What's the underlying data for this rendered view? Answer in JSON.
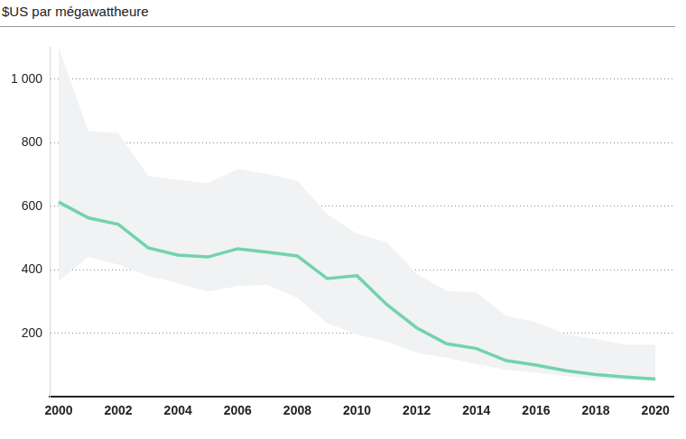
{
  "chart_data": {
    "type": "line",
    "ylabel": "$US par mégawattheure",
    "x": [
      2000,
      2001,
      2002,
      2003,
      2004,
      2005,
      2006,
      2007,
      2008,
      2009,
      2010,
      2011,
      2012,
      2013,
      2014,
      2015,
      2016,
      2017,
      2018,
      2019,
      2020
    ],
    "values": [
      613,
      563,
      543,
      469,
      446,
      440,
      466,
      455,
      443,
      372,
      381,
      290,
      217,
      167,
      152,
      114,
      100,
      82,
      70,
      62,
      56
    ],
    "color": "#72d3ab",
    "band_high": [
      1100,
      836,
      830,
      695,
      683,
      672,
      716,
      701,
      680,
      575,
      513,
      487,
      387,
      334,
      328,
      255,
      235,
      196,
      182,
      164,
      164
    ],
    "band_low": [
      364,
      440,
      416,
      381,
      358,
      331,
      349,
      352,
      311,
      232,
      196,
      173,
      138,
      123,
      103,
      85,
      76,
      65,
      56,
      53,
      50
    ],
    "band_color": "#f1f2f3",
    "xlim": [
      1999.7,
      2020.6
    ],
    "xticks": [
      2000,
      2002,
      2004,
      2006,
      2008,
      2010,
      2012,
      2014,
      2016,
      2018,
      2020
    ],
    "ylim": [
      0,
      1100
    ],
    "yticks": [
      200,
      400,
      600,
      800,
      {
        "value": 1000,
        "label": "1 000"
      }
    ],
    "grid": true
  }
}
